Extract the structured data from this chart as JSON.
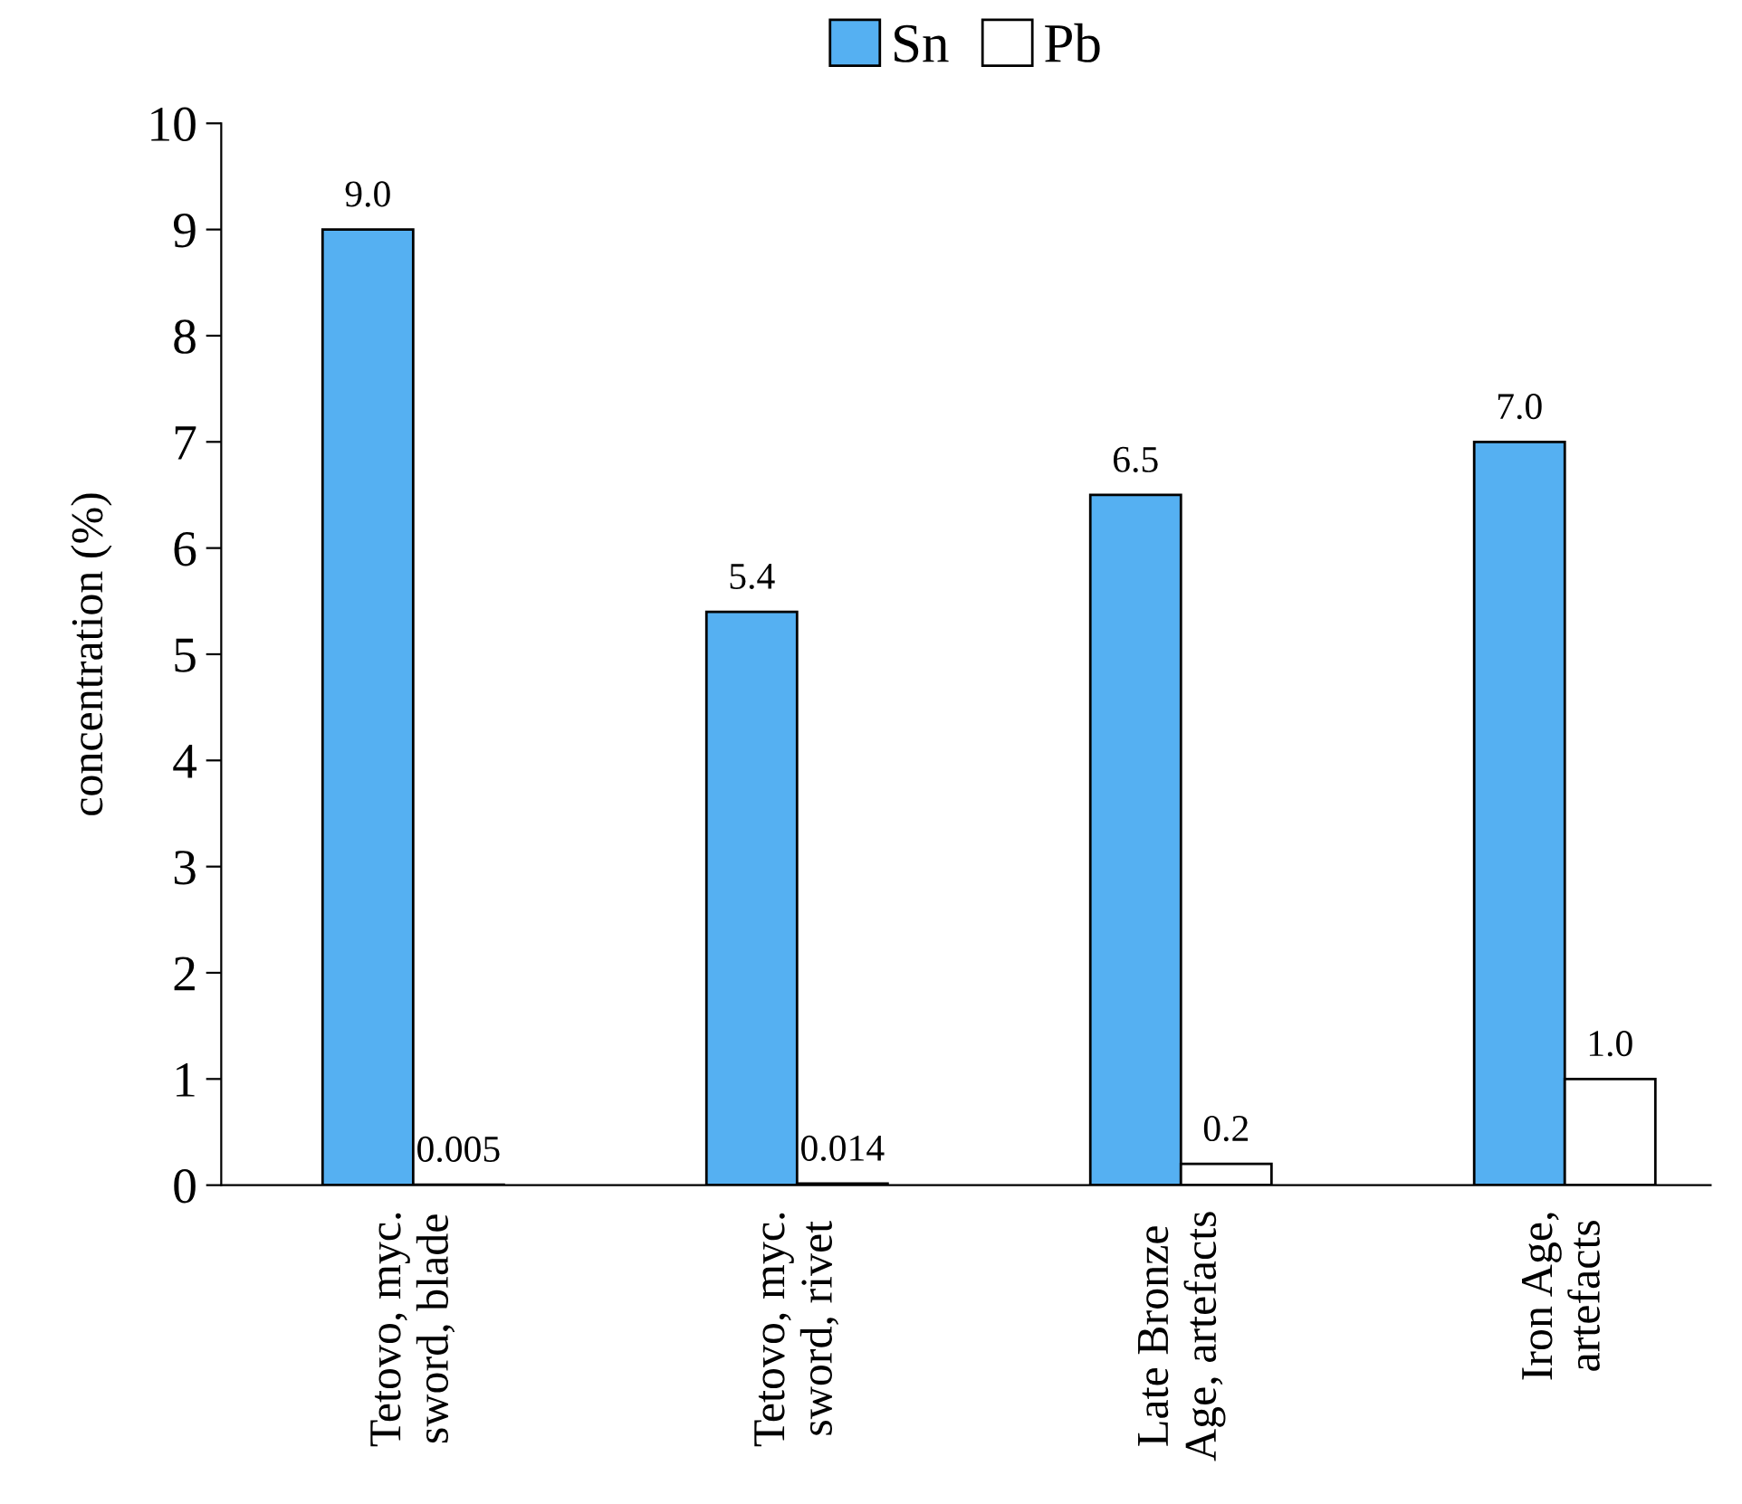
{
  "chart_data": {
    "type": "bar",
    "ylabel": "concentration (%)",
    "categories": [
      "Tetovo, myc.\nsword, blade",
      "Tetovo, myc.\nsword, rivet",
      "Late Bronze\nAge, artefacts",
      "Iron Age,\nartefacts"
    ],
    "series": [
      {
        "name": "Sn",
        "color": "#55b0f2",
        "values": [
          9.0,
          5.4,
          6.5,
          7.0
        ],
        "value_labels": [
          "9.0",
          "5.4",
          "6.5",
          "7.0"
        ]
      },
      {
        "name": "Pb",
        "color": "#ffffff",
        "values": [
          0.005,
          0.014,
          0.2,
          1.0
        ],
        "value_labels": [
          "0.005",
          "0.014",
          "0.2",
          "1.0"
        ]
      }
    ],
    "ylim": [
      0,
      10
    ],
    "yticks": [
      0,
      1,
      2,
      3,
      4,
      5,
      6,
      7,
      8,
      9,
      10
    ],
    "grid": false,
    "legend": "top"
  }
}
